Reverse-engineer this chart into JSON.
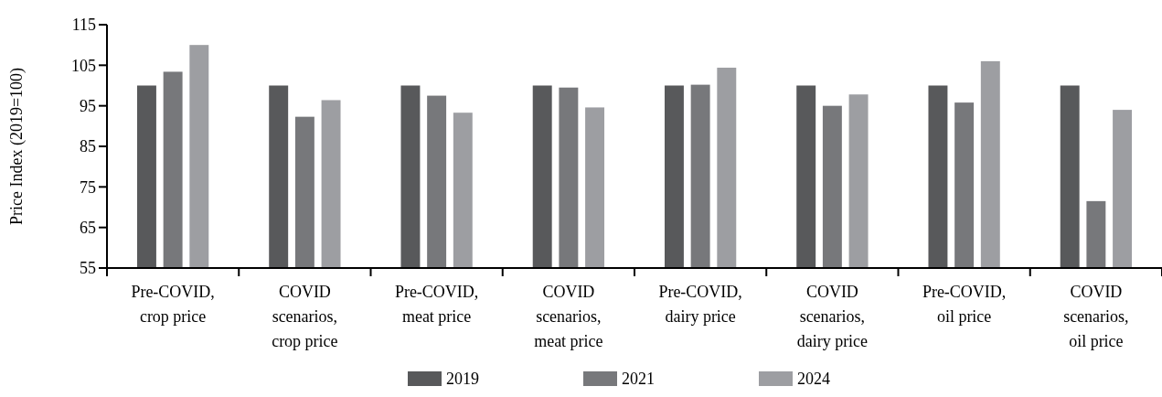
{
  "chart_data": {
    "type": "bar",
    "ylabel": "Price Index (2019=100)",
    "categories": [
      "Pre-COVID, crop price",
      "COVID scenarios, crop price",
      "Pre-COVID, meat price",
      "COVID scenarios, meat price",
      "Pre-COVID, dairy price",
      "COVID scenarios, dairy price",
      "Pre-COVID, oil price",
      "COVID scenarios, oil price"
    ],
    "series": [
      {
        "name": "2019",
        "color": "#58595b",
        "values": [
          100,
          100,
          100,
          100,
          100,
          100,
          100,
          100
        ]
      },
      {
        "name": "2021",
        "color": "#77787b",
        "values": [
          103.4,
          92.3,
          97.5,
          99.5,
          100.2,
          95.0,
          95.8,
          71.5
        ]
      },
      {
        "name": "2024",
        "color": "#9d9ea2",
        "values": [
          110.0,
          96.4,
          93.3,
          94.6,
          104.4,
          97.8,
          106.0,
          94.0
        ]
      }
    ],
    "ylim": [
      55,
      115
    ],
    "yticks": [
      55,
      65,
      75,
      85,
      95,
      105,
      115
    ],
    "grid": false,
    "legend": "bottom"
  }
}
